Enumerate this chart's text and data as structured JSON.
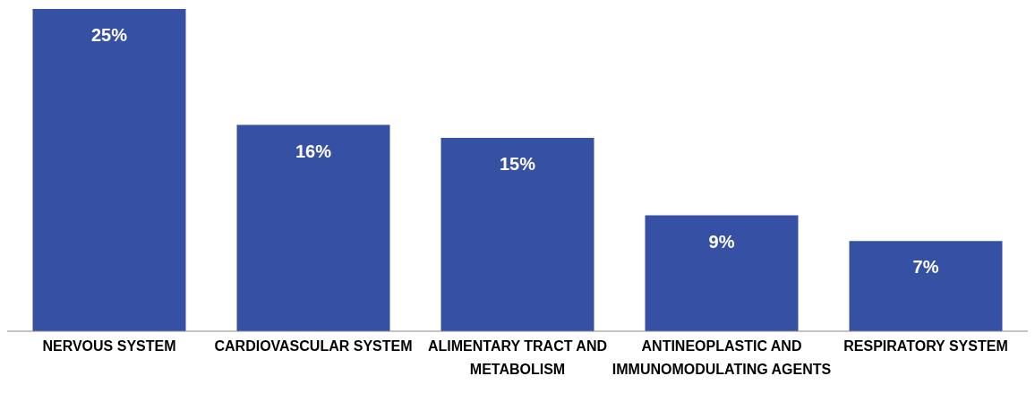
{
  "chart_data": {
    "type": "bar",
    "categories": [
      "NERVOUS SYSTEM",
      "CARDIOVASCULAR SYSTEM",
      "ALIMENTARY TRACT AND METABOLISM",
      "ANTINEOPLASTIC AND IMMUNOMODULATING AGENTS",
      "RESPIRATORY SYSTEM"
    ],
    "values": [
      25,
      16,
      15,
      9,
      7
    ],
    "value_labels": [
      "25%",
      "16%",
      "15%",
      "9%",
      "7%"
    ],
    "color": "#3650a3"
  }
}
